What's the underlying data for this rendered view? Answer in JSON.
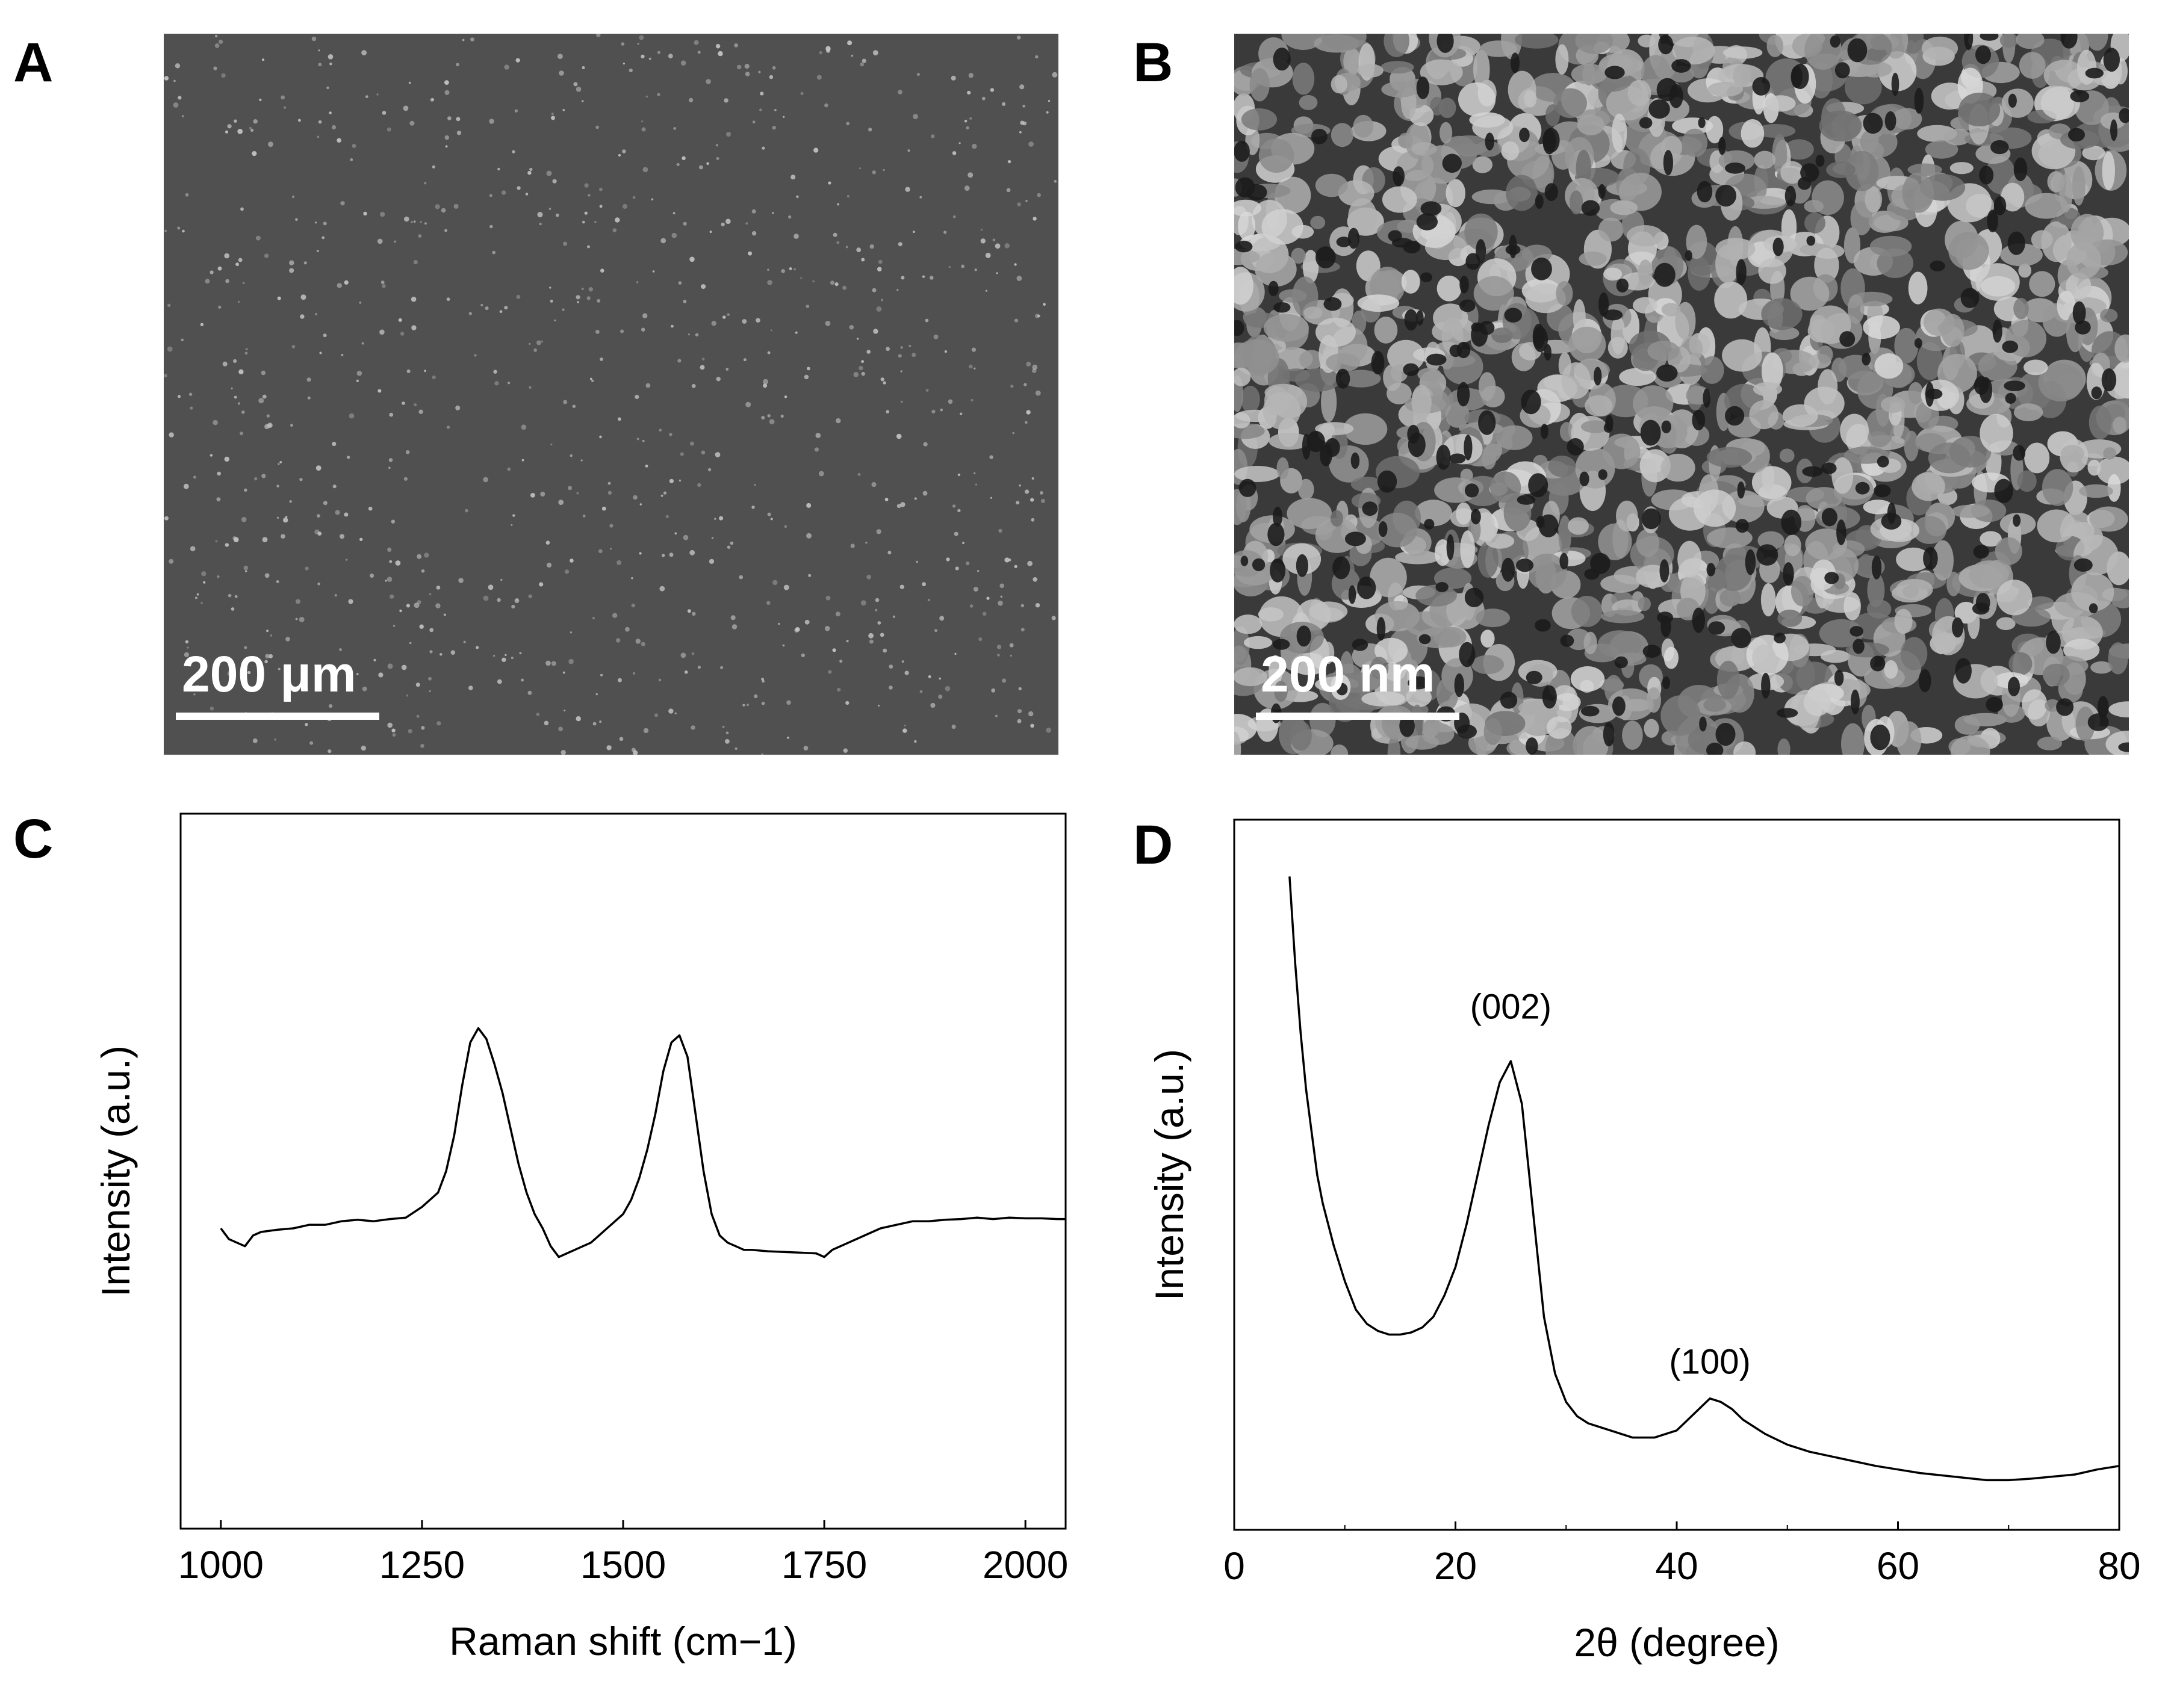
{
  "panels": {
    "a": {
      "letter": "A",
      "scale_label": "200 μm"
    },
    "b": {
      "letter": "B",
      "scale_label": "200 nm"
    },
    "c": {
      "letter": "C"
    },
    "d": {
      "letter": "D"
    }
  },
  "colors": {
    "micrograph_a_background": "#505050",
    "micrograph_a_particles": "#c8c8c8",
    "micrograph_b_background": "#3a3a3a",
    "micrograph_b_grains": "#a8a8a8",
    "line": "#000000"
  },
  "chart_data": [
    {
      "id": "raman",
      "type": "line",
      "xlabel": "Raman shift (cm−1)",
      "ylabel": "Intensity (a.u.)",
      "xlim": [
        950,
        2050
      ],
      "ylim": [
        0,
        1
      ],
      "x_ticks": [
        1000,
        1250,
        1500,
        1750,
        2000
      ],
      "y_ticks_shown": false,
      "grid": false,
      "legend": "none",
      "series": [
        {
          "x": [
            1000,
            1010,
            1020,
            1030,
            1040,
            1050,
            1070,
            1090,
            1110,
            1130,
            1150,
            1170,
            1190,
            1210,
            1230,
            1250,
            1260,
            1270,
            1280,
            1290,
            1300,
            1310,
            1320,
            1330,
            1340,
            1350,
            1360,
            1370,
            1380,
            1390,
            1400,
            1410,
            1420,
            1430,
            1440,
            1450,
            1460,
            1470,
            1480,
            1490,
            1500,
            1510,
            1520,
            1530,
            1540,
            1550,
            1560,
            1570,
            1580,
            1590,
            1600,
            1610,
            1620,
            1630,
            1640,
            1650,
            1660,
            1680,
            1700,
            1720,
            1740,
            1750,
            1760,
            1780,
            1800,
            1820,
            1840,
            1860,
            1880,
            1900,
            1920,
            1940,
            1960,
            1980,
            2000,
            2020,
            2040,
            2050
          ],
          "y": [
            0.42,
            0.405,
            0.4,
            0.395,
            0.41,
            0.415,
            0.418,
            0.42,
            0.425,
            0.425,
            0.43,
            0.432,
            0.43,
            0.433,
            0.435,
            0.45,
            0.46,
            0.47,
            0.5,
            0.55,
            0.62,
            0.68,
            0.7,
            0.685,
            0.65,
            0.61,
            0.56,
            0.51,
            0.47,
            0.44,
            0.42,
            0.395,
            0.38,
            0.385,
            0.39,
            0.395,
            0.4,
            0.41,
            0.42,
            0.43,
            0.44,
            0.46,
            0.49,
            0.53,
            0.58,
            0.64,
            0.68,
            0.69,
            0.66,
            0.58,
            0.5,
            0.44,
            0.41,
            0.4,
            0.395,
            0.39,
            0.39,
            0.388,
            0.387,
            0.386,
            0.385,
            0.38,
            0.39,
            0.4,
            0.41,
            0.42,
            0.425,
            0.43,
            0.43,
            0.432,
            0.433,
            0.435,
            0.433,
            0.435,
            0.434,
            0.434,
            0.433,
            0.433
          ]
        }
      ]
    },
    {
      "id": "xrd",
      "type": "line",
      "xlabel": "2θ (degree)",
      "ylabel": "Intensity (a.u.)",
      "xlim": [
        0,
        80
      ],
      "ylim": [
        0,
        1
      ],
      "x_ticks": [
        0,
        20,
        40,
        60,
        80
      ],
      "y_ticks_shown": false,
      "grid": false,
      "legend": "none",
      "annotations": [
        {
          "text": "(002)",
          "x": 25,
          "y": 0.72
        },
        {
          "text": "(100)",
          "x": 43,
          "y": 0.22
        }
      ],
      "series": [
        {
          "x": [
            5,
            5.5,
            6,
            6.5,
            7,
            7.5,
            8,
            9,
            10,
            11,
            12,
            13,
            14,
            15,
            16,
            17,
            18,
            19,
            20,
            21,
            22,
            23,
            24,
            25,
            26,
            27,
            28,
            29,
            30,
            31,
            32,
            33,
            34,
            35,
            36,
            37,
            38,
            39,
            40,
            41,
            42,
            43,
            44,
            45,
            46,
            47,
            48,
            50,
            52,
            55,
            58,
            60,
            62,
            65,
            68,
            70,
            72,
            74,
            76,
            78,
            80
          ],
          "y": [
            0.92,
            0.8,
            0.7,
            0.62,
            0.56,
            0.5,
            0.46,
            0.4,
            0.35,
            0.31,
            0.29,
            0.28,
            0.275,
            0.275,
            0.278,
            0.285,
            0.3,
            0.33,
            0.37,
            0.43,
            0.5,
            0.57,
            0.63,
            0.66,
            0.6,
            0.45,
            0.3,
            0.22,
            0.18,
            0.16,
            0.15,
            0.145,
            0.14,
            0.135,
            0.13,
            0.13,
            0.13,
            0.135,
            0.14,
            0.155,
            0.17,
            0.185,
            0.18,
            0.17,
            0.155,
            0.145,
            0.135,
            0.12,
            0.11,
            0.1,
            0.09,
            0.085,
            0.08,
            0.075,
            0.07,
            0.07,
            0.072,
            0.075,
            0.078,
            0.085,
            0.09
          ]
        }
      ]
    }
  ]
}
